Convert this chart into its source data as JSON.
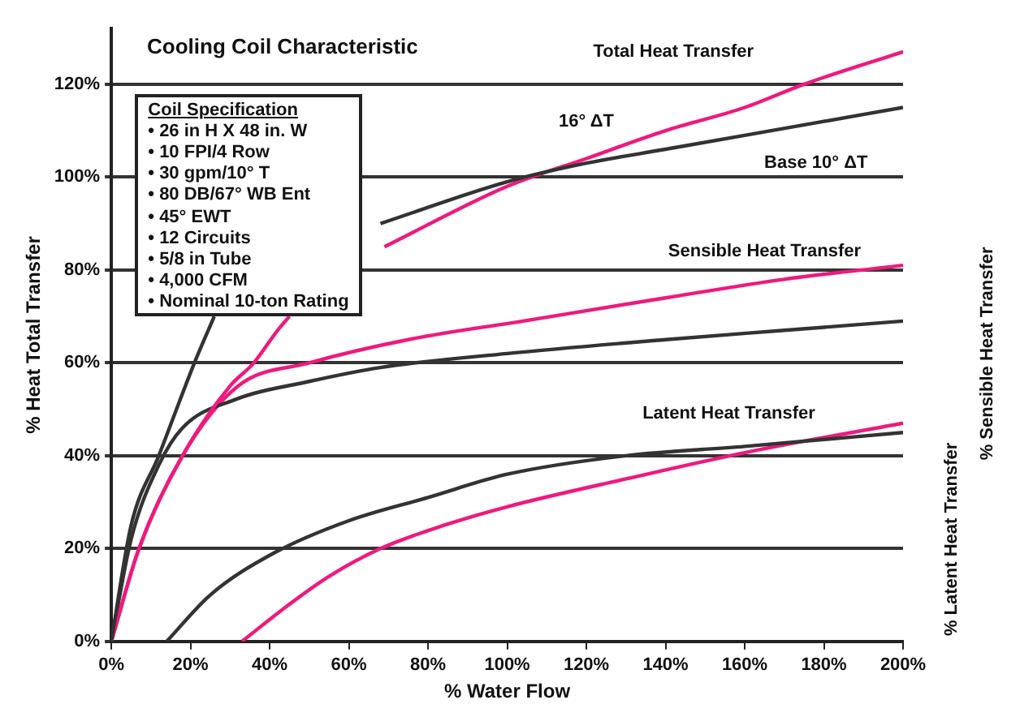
{
  "chart_data": {
    "type": "line",
    "title": "Cooling Coil Characteristic",
    "xlabel": "% Water Flow",
    "ylabel": "% Heat Total Transfer",
    "y2label": "% Latent Heat Transfer",
    "y3label": "% Sensible Heat Transfer",
    "xlim": [
      0,
      200
    ],
    "xticks": [
      {
        "value": 0,
        "label": "0%"
      },
      {
        "value": 20,
        "label": "20%"
      },
      {
        "value": 40,
        "label": "40%"
      },
      {
        "value": 60,
        "label": "60%"
      },
      {
        "value": 80,
        "label": "80%"
      },
      {
        "value": 100,
        "label": "100%"
      },
      {
        "value": 120,
        "label": "120%"
      },
      {
        "value": 140,
        "label": "140%"
      },
      {
        "value": 160,
        "label": "160%"
      },
      {
        "value": 180,
        "label": "180%"
      },
      {
        "value": 200,
        "label": "200%"
      }
    ],
    "ylim": [
      0,
      132
    ],
    "yticks": [
      {
        "value": 0,
        "label": "0%"
      },
      {
        "value": 20,
        "label": "20%"
      },
      {
        "value": 40,
        "label": "40%"
      },
      {
        "value": 60,
        "label": "60%"
      },
      {
        "value": 80,
        "label": "80%"
      },
      {
        "value": 100,
        "label": "100%"
      },
      {
        "value": 120,
        "label": "120%"
      }
    ],
    "grid": "y",
    "legend": false,
    "marker": "none",
    "line_style": "solid",
    "series": [
      {
        "color": "#333333",
        "x": [
          0,
          5,
          12,
          21,
          26,
          45,
          68,
          100,
          120,
          140,
          160,
          180,
          200
        ],
        "values": [
          0,
          25,
          40,
          60,
          70,
          null,
          90,
          99,
          103,
          106,
          109,
          112,
          115
        ]
      },
      {
        "color": "#ee1a7e",
        "x": [
          0,
          7,
          18,
          30,
          36,
          42,
          45,
          55,
          69,
          100,
          120,
          140,
          160,
          175,
          200
        ],
        "values": [
          0,
          20,
          40,
          55,
          60,
          67,
          70,
          null,
          85,
          98,
          104,
          110,
          115,
          120,
          127
        ]
      },
      {
        "color": "#333333",
        "x": [
          0,
          5,
          12,
          18,
          31,
          50,
          68,
          100,
          140,
          170,
          200
        ],
        "values": [
          0,
          22,
          38,
          46,
          52,
          56,
          59,
          62,
          65,
          67,
          69
        ]
      },
      {
        "color": "#ee1a7e",
        "x": [
          0,
          7,
          18,
          32,
          50,
          75,
          104,
          140,
          170,
          200
        ],
        "values": [
          0,
          20,
          40,
          55,
          60,
          65,
          69,
          74,
          78,
          81
        ]
      },
      {
        "color": "#333333",
        "x": [
          14,
          25,
          41,
          60,
          80,
          100,
          130,
          160,
          200
        ],
        "values": [
          0,
          10,
          19,
          26,
          31,
          36,
          40,
          42,
          45
        ]
      },
      {
        "color": "#ee1a7e",
        "x": [
          33,
          45,
          55,
          68,
          84,
          100,
          130,
          162,
          200
        ],
        "values": [
          0,
          8,
          14,
          20,
          25,
          29,
          35,
          41,
          47
        ]
      }
    ],
    "annotations": [
      "Coil Specification",
      "• 26 in H X 48 in. W",
      "• 10 FPI/4 Row",
      "• 30 gpm/10° T",
      "• 80 DB/67° WB Ent",
      "• 45° EWT",
      "• 12 Circuits",
      "• 5/8 in Tube",
      "• 4,000 CFM",
      "• Nominal 10-ton Rating",
      "Total Heat Transfer",
      "16° ΔT",
      "Base 10° ΔT",
      "Sensible Heat Transfer",
      "Latent Heat Transfer"
    ]
  }
}
